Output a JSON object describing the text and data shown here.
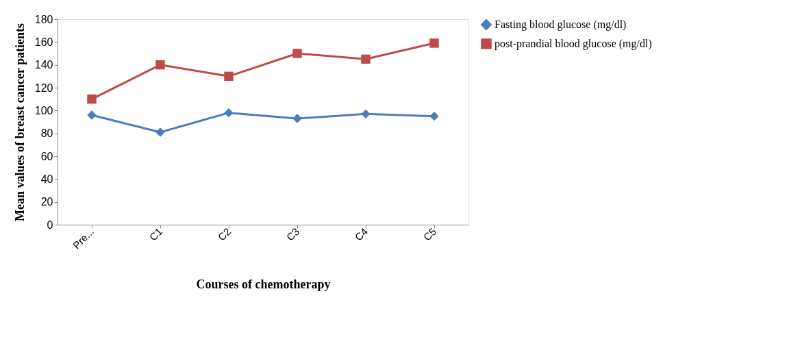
{
  "chart_data": {
    "type": "line",
    "xlabel": "Courses of chemotherapy",
    "ylabel": "Mean values of breast cancer patients",
    "categories": [
      "Pre...",
      "C1",
      "C2",
      "C3",
      "C4",
      "C5"
    ],
    "series": [
      {
        "name": "Fasting blood glucose (mg/dl)",
        "color": "#4a7ebb",
        "marker": "diamond",
        "values": [
          96,
          81,
          98,
          93,
          97,
          95
        ]
      },
      {
        "name": "post-prandial blood glucose (mg/dl)",
        "color": "#be4b48",
        "marker": "square",
        "values": [
          110,
          140,
          130,
          150,
          145,
          159
        ]
      }
    ],
    "ylim": [
      0,
      180
    ],
    "yticks": [
      0,
      20,
      40,
      60,
      80,
      100,
      120,
      140,
      160,
      180
    ],
    "grid": false,
    "legend": "right"
  }
}
